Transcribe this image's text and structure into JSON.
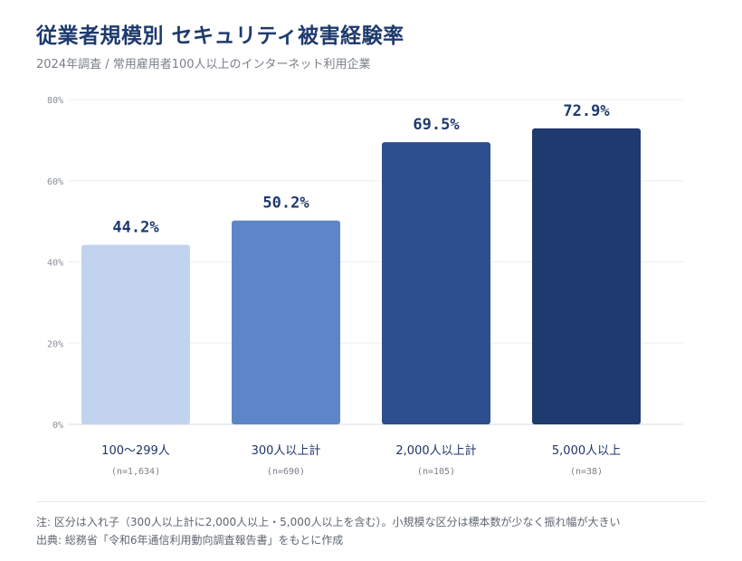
{
  "header": {
    "title": "従業者規模別 セキュリティ被害経験率",
    "subtitle": "2024年調査 / 常用雇用者100人以上のインターネット利用企業"
  },
  "chart_data": {
    "type": "bar",
    "categories": [
      "100〜299人",
      "300人以上計",
      "2,000人以上計",
      "5,000人以上"
    ],
    "sample_sizes": [
      "(n=1,634)",
      "(n=690)",
      "(n=105)",
      "(n=38)"
    ],
    "values": [
      44.2,
      50.2,
      69.5,
      72.9
    ],
    "value_labels": [
      "44.2%",
      "50.2%",
      "69.5%",
      "72.9%"
    ],
    "bar_colors": [
      "#c1d3ef",
      "#5c86c8",
      "#2c4f8d",
      "#1e3a6e"
    ],
    "ylim": [
      0,
      80
    ],
    "yticks": [
      0,
      20,
      40,
      60,
      80
    ],
    "ytick_labels": [
      "0%",
      "20%",
      "40%",
      "60%",
      "80%"
    ],
    "grid": true,
    "xlabel": "",
    "ylabel": ""
  },
  "notes": {
    "note": "注: 区分は入れ子（300人以上計に2,000人以上・5,000人以上を含む）。小規模な区分は標本数が少なく振れ幅が大きい",
    "source": "出典: 総務省「令和6年通信利用動向調査報告書」をもとに作成"
  }
}
